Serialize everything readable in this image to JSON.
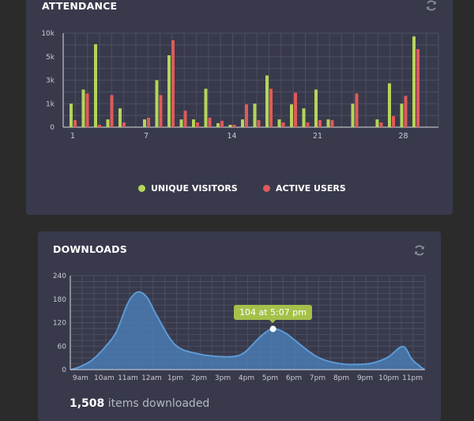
{
  "attendance": {
    "title": "ATTENDANCE",
    "refresh_icon": "refresh-icon",
    "legend": [
      {
        "label": "UNIQUE VISITORS",
        "color": "#b5d55a"
      },
      {
        "label": "ACTIVE USERS",
        "color": "#e05a5a"
      }
    ]
  },
  "downloads": {
    "title": "DOWNLOADS",
    "refresh_icon": "refresh-icon",
    "tooltip": "104 at 5:07 pm",
    "summary_count": "1,508",
    "summary_label": "items downloaded"
  },
  "chart_data": [
    {
      "type": "bar",
      "title": "ATTENDANCE",
      "y_ticks": [
        0,
        1000,
        3000,
        5000,
        10000
      ],
      "y_tick_labels": [
        "0",
        "1k",
        "3k",
        "5k",
        "10k"
      ],
      "x_tick_labels": [
        "1",
        "7",
        "14",
        "21",
        "28"
      ],
      "categories": [
        1,
        2,
        3,
        4,
        5,
        6,
        7,
        8,
        9,
        10,
        11,
        12,
        13,
        14,
        15,
        16,
        17,
        18,
        19,
        20,
        21,
        22,
        23,
        24,
        25,
        26,
        27,
        28,
        29,
        30
      ],
      "grid": true,
      "legend_placement": "bottom",
      "series": [
        {
          "name": "UNIQUE VISITORS",
          "color": "#b5d55a",
          "values": [
            1000,
            2200,
            7650,
            330,
            800,
            0,
            330,
            3000,
            5300,
            330,
            330,
            2270,
            170,
            100,
            330,
            1000,
            3400,
            330,
            970,
            800,
            2200,
            330,
            0,
            1000,
            0,
            330,
            2730,
            1000,
            9300,
            0
          ]
        },
        {
          "name": "ACTIVE USERS",
          "color": "#e05a5a",
          "values": [
            300,
            1870,
            100,
            1730,
            200,
            0,
            400,
            1730,
            8500,
            700,
            200,
            400,
            270,
            100,
            970,
            300,
            2270,
            200,
            1930,
            200,
            300,
            300,
            0,
            1870,
            0,
            200,
            470,
            1670,
            6600,
            0
          ]
        }
      ]
    },
    {
      "type": "area",
      "title": "DOWNLOADS",
      "y_ticks": [
        0,
        60,
        120,
        180,
        240
      ],
      "ylim": [
        0,
        240
      ],
      "x_tick_labels": [
        "9am",
        "10am",
        "11am",
        "12am",
        "1pm",
        "2pm",
        "3pm",
        "4pm",
        "5pm",
        "6pm",
        "7pm",
        "8pm",
        "9pm",
        "10pm",
        "11pm"
      ],
      "grid": true,
      "color": "#4a80b8",
      "x": [
        8.6,
        9,
        9.5,
        10,
        10.5,
        11,
        11.4,
        11.8,
        12.2,
        13,
        14,
        15,
        15.6,
        16,
        16.6,
        17.1,
        17.6,
        18,
        19,
        20,
        21,
        21.5,
        22,
        22.6,
        23,
        23.5
      ],
      "y": [
        0,
        8,
        25,
        55,
        95,
        170,
        198,
        185,
        140,
        63,
        40,
        33,
        35,
        48,
        85,
        104,
        95,
        77,
        32,
        15,
        14,
        20,
        33,
        59,
        25,
        0
      ],
      "highlight": {
        "x": 17.12,
        "y": 104,
        "label": "104 at 5:07 pm"
      }
    }
  ]
}
